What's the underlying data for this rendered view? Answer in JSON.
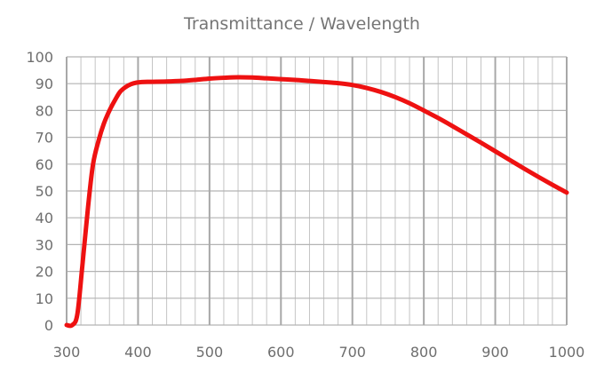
{
  "chart_data": {
    "type": "line",
    "title": "Transmittance / Wavelength",
    "xlabel": "",
    "ylabel": "",
    "xlim": [
      300,
      1000
    ],
    "ylim": [
      0,
      100
    ],
    "xticks": [
      300,
      400,
      500,
      600,
      700,
      800,
      900,
      1000
    ],
    "yticks": [
      0,
      10,
      20,
      30,
      40,
      50,
      60,
      70,
      80,
      90,
      100
    ],
    "xtick_labels": [
      "300",
      "400",
      "500",
      "600",
      "700",
      "800",
      "900",
      "1000"
    ],
    "ytick_labels": [
      "0",
      "10",
      "20",
      "30",
      "40",
      "50",
      "60",
      "70",
      "80",
      "90",
      "100"
    ],
    "grid": true,
    "series": [
      {
        "name": "Transmittance",
        "color": "#ee1111",
        "x": [
          300,
          308,
          315,
          322,
          330,
          337,
          345,
          352,
          360,
          368,
          375,
          383,
          390,
          398,
          405,
          413,
          420,
          440,
          460,
          480,
          500,
          520,
          540,
          560,
          580,
          600,
          620,
          640,
          660,
          680,
          700,
          720,
          740,
          760,
          780,
          800,
          820,
          840,
          860,
          880,
          900,
          920,
          940,
          960,
          980,
          1000
        ],
        "values": [
          0,
          0,
          4,
          22,
          44,
          60,
          69,
          75,
          80,
          84,
          87,
          88.8,
          89.8,
          90.4,
          90.6,
          90.7,
          90.7,
          90.8,
          91,
          91.4,
          91.9,
          92.2,
          92.4,
          92.3,
          92,
          91.7,
          91.4,
          91,
          90.6,
          90.2,
          89.5,
          88.4,
          86.9,
          85,
          82.7,
          80,
          77.2,
          74.2,
          71.1,
          68,
          64.8,
          61.6,
          58.4,
          55.3,
          52.3,
          49.4
        ]
      }
    ]
  }
}
